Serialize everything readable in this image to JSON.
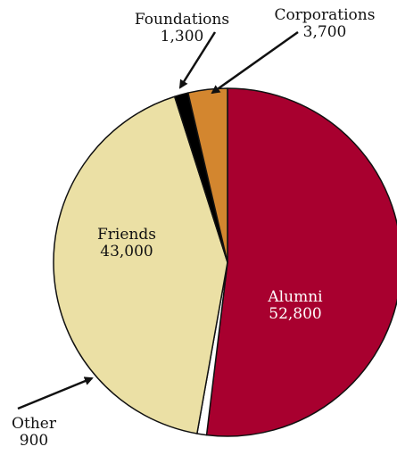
{
  "chart_data": {
    "type": "pie",
    "start_angle_deg": 0,
    "direction": "clockwise",
    "slices": [
      {
        "name": "Alumni",
        "value": 52800,
        "value_label": "52,800",
        "color": "#a8002f",
        "label_color": "#ffffff"
      },
      {
        "name": "Other",
        "value": 900,
        "value_label": "900",
        "color": "#ffffff",
        "label_color": "#111111"
      },
      {
        "name": "Friends",
        "value": 43000,
        "value_label": "43,000",
        "color": "#ebe0a5",
        "label_color": "#111111"
      },
      {
        "name": "Foundations",
        "value": 1300,
        "value_label": "1,300",
        "color": "#000000",
        "label_color": "#111111"
      },
      {
        "name": "Corporations",
        "value": 3700,
        "value_label": "3,700",
        "color": "#d3862f",
        "label_color": "#111111"
      }
    ]
  }
}
